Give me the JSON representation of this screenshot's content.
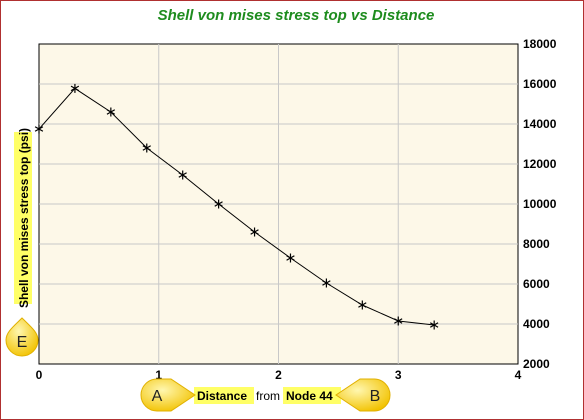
{
  "chart_data": {
    "type": "line",
    "title": "Shell von mises stress top  vs Distance",
    "xlabel_parts": [
      "Distance",
      "from",
      "Node 44"
    ],
    "ylabel": "Shell von mises stress top (psi)",
    "xlim": [
      0,
      4
    ],
    "ylim": [
      2000,
      18000
    ],
    "x_ticks": [
      0,
      1,
      2,
      3,
      4
    ],
    "y_ticks": [
      2000,
      4000,
      6000,
      8000,
      10000,
      12000,
      14000,
      16000,
      18000
    ],
    "y_axis_side": "right",
    "grid": true,
    "series": [
      {
        "x": [
          0,
          0.3,
          0.6,
          0.9,
          1.2,
          1.5,
          1.8,
          2.1,
          2.4,
          2.7,
          3.0,
          3.3
        ],
        "y": [
          13750,
          15780,
          14600,
          12800,
          11450,
          10000,
          8600,
          7300,
          6050,
          4950,
          4150,
          3950
        ],
        "marker": "asterisk",
        "color": "#000000"
      }
    ],
    "plot_background": "#fdf8e8",
    "highlight_color": "#ffff66",
    "annotations": {
      "start_marker": "A",
      "end_marker": "B",
      "expand_marker": "E"
    }
  }
}
